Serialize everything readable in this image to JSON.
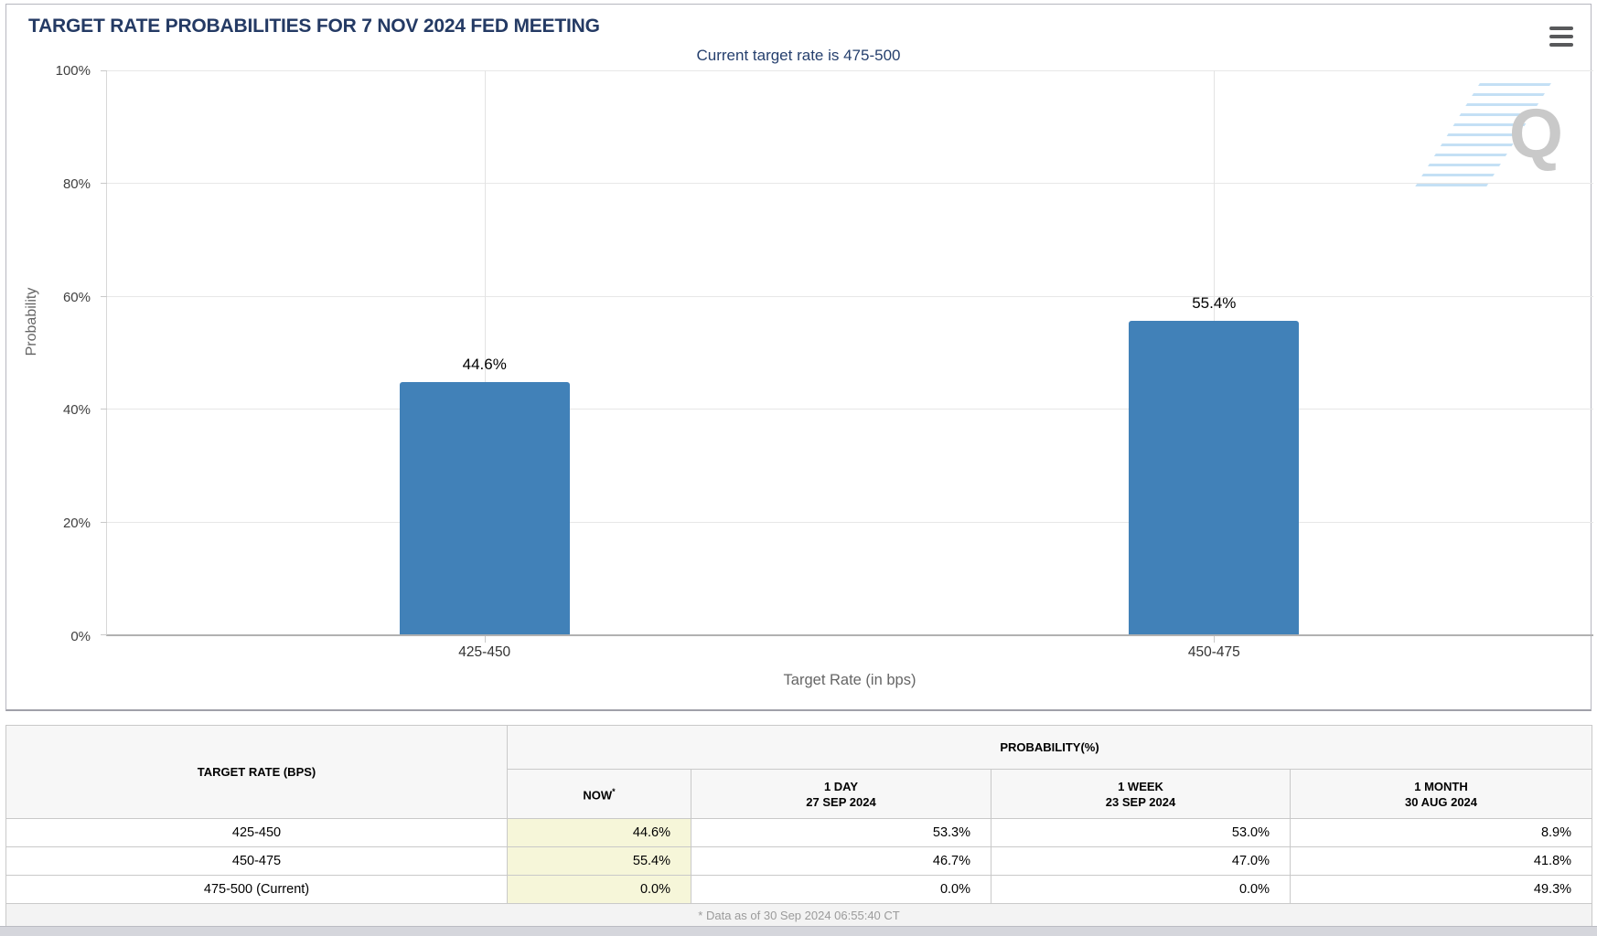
{
  "page": {
    "title": "TARGET RATE PROBABILITIES FOR 7 NOV 2024 FED MEETING"
  },
  "chart_data": {
    "type": "bar",
    "title": "TARGET RATE PROBABILITIES FOR 7 NOV 2024 FED MEETING",
    "subtitle": "Current target rate is 475-500",
    "categories": [
      "425-450",
      "450-475"
    ],
    "values": [
      44.6,
      55.4
    ],
    "labels": [
      "44.6%",
      "55.4%"
    ],
    "xlabel": "Target Rate (in bps)",
    "ylabel": "Probability",
    "ylim": [
      0,
      100
    ],
    "yticks": [
      "100%",
      "80%",
      "60%",
      "40%",
      "20%",
      "0%"
    ],
    "ytick_step": 20,
    "grid": true,
    "legend": false,
    "bar_color": "#4181b8",
    "watermark_letter": "Q"
  },
  "colors": {
    "title_navy": "#243a64",
    "bar_blue": "#4181b8",
    "now_column_highlight": "#f6f6d9"
  },
  "table": {
    "col1_header": "TARGET RATE (BPS)",
    "group_header": "PROBABILITY(%)",
    "subheaders": [
      {
        "line1": "NOW",
        "sup": "*",
        "line2": ""
      },
      {
        "line1": "1 DAY",
        "line2": "27 SEP 2024"
      },
      {
        "line1": "1 WEEK",
        "line2": "23 SEP 2024"
      },
      {
        "line1": "1 MONTH",
        "line2": "30 AUG 2024"
      }
    ],
    "rows": [
      {
        "rate": "425-450",
        "now": "44.6%",
        "day": "53.3%",
        "week": "53.0%",
        "month": "8.9%"
      },
      {
        "rate": "450-475",
        "now": "55.4%",
        "day": "46.7%",
        "week": "47.0%",
        "month": "41.8%"
      },
      {
        "rate": "475-500 (Current)",
        "now": "0.0%",
        "day": "0.0%",
        "week": "0.0%",
        "month": "49.3%"
      }
    ],
    "footnote": "* Data as of 30 Sep 2024 06:55:40 CT"
  }
}
